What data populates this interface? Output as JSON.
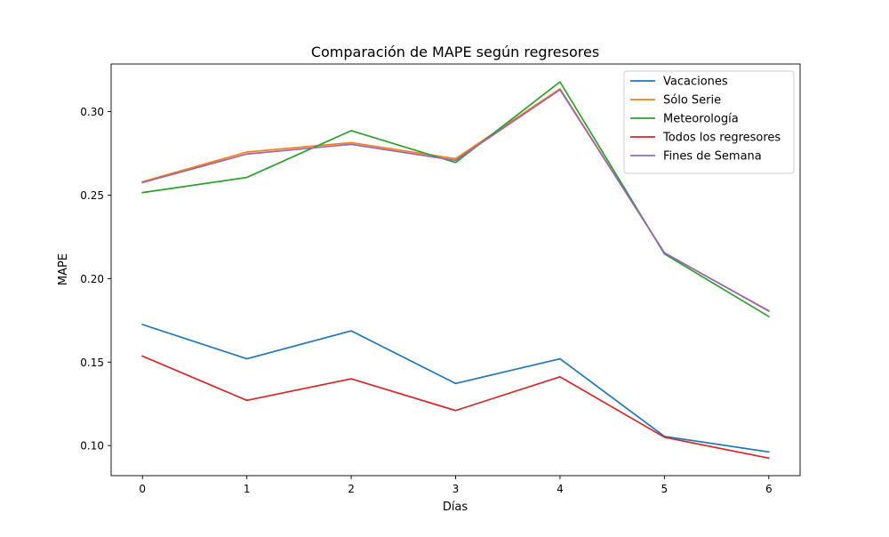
{
  "chart_data": {
    "type": "line",
    "title": "Comparación de MAPE según regresores",
    "xlabel": "Días",
    "ylabel": "MAPE",
    "x": [
      0,
      1,
      2,
      3,
      4,
      5,
      6
    ],
    "xlim": [
      -0.3,
      6.3
    ],
    "ylim": [
      0.082,
      0.3285
    ],
    "xticks": [
      "0",
      "1",
      "2",
      "3",
      "4",
      "5",
      "6"
    ],
    "yticks": [
      "0.10",
      "0.15",
      "0.20",
      "0.25",
      "0.30"
    ],
    "grid": false,
    "legend_position": "top-right",
    "series": [
      {
        "name": "Vacaciones",
        "color": "#1f77b4",
        "values": [
          0.1725,
          0.152,
          0.1687,
          0.1372,
          0.152,
          0.1055,
          0.0962
        ]
      },
      {
        "name": "Sólo Serie",
        "color": "#ff7f0e",
        "values": [
          0.258,
          0.2758,
          0.2814,
          0.2718,
          0.3137,
          0.2153,
          0.1808
        ]
      },
      {
        "name": "Meteorología",
        "color": "#2ca02c",
        "values": [
          0.2515,
          0.2606,
          0.2886,
          0.2695,
          0.3178,
          0.2148,
          0.1773
        ]
      },
      {
        "name": "Todos los regresores",
        "color": "#d62728",
        "values": [
          0.1536,
          0.1271,
          0.14,
          0.121,
          0.1412,
          0.105,
          0.0925
        ]
      },
      {
        "name": "Fines de Semana",
        "color": "#9467bd",
        "values": [
          0.2575,
          0.2746,
          0.2804,
          0.2708,
          0.3131,
          0.2155,
          0.1805
        ]
      }
    ]
  }
}
